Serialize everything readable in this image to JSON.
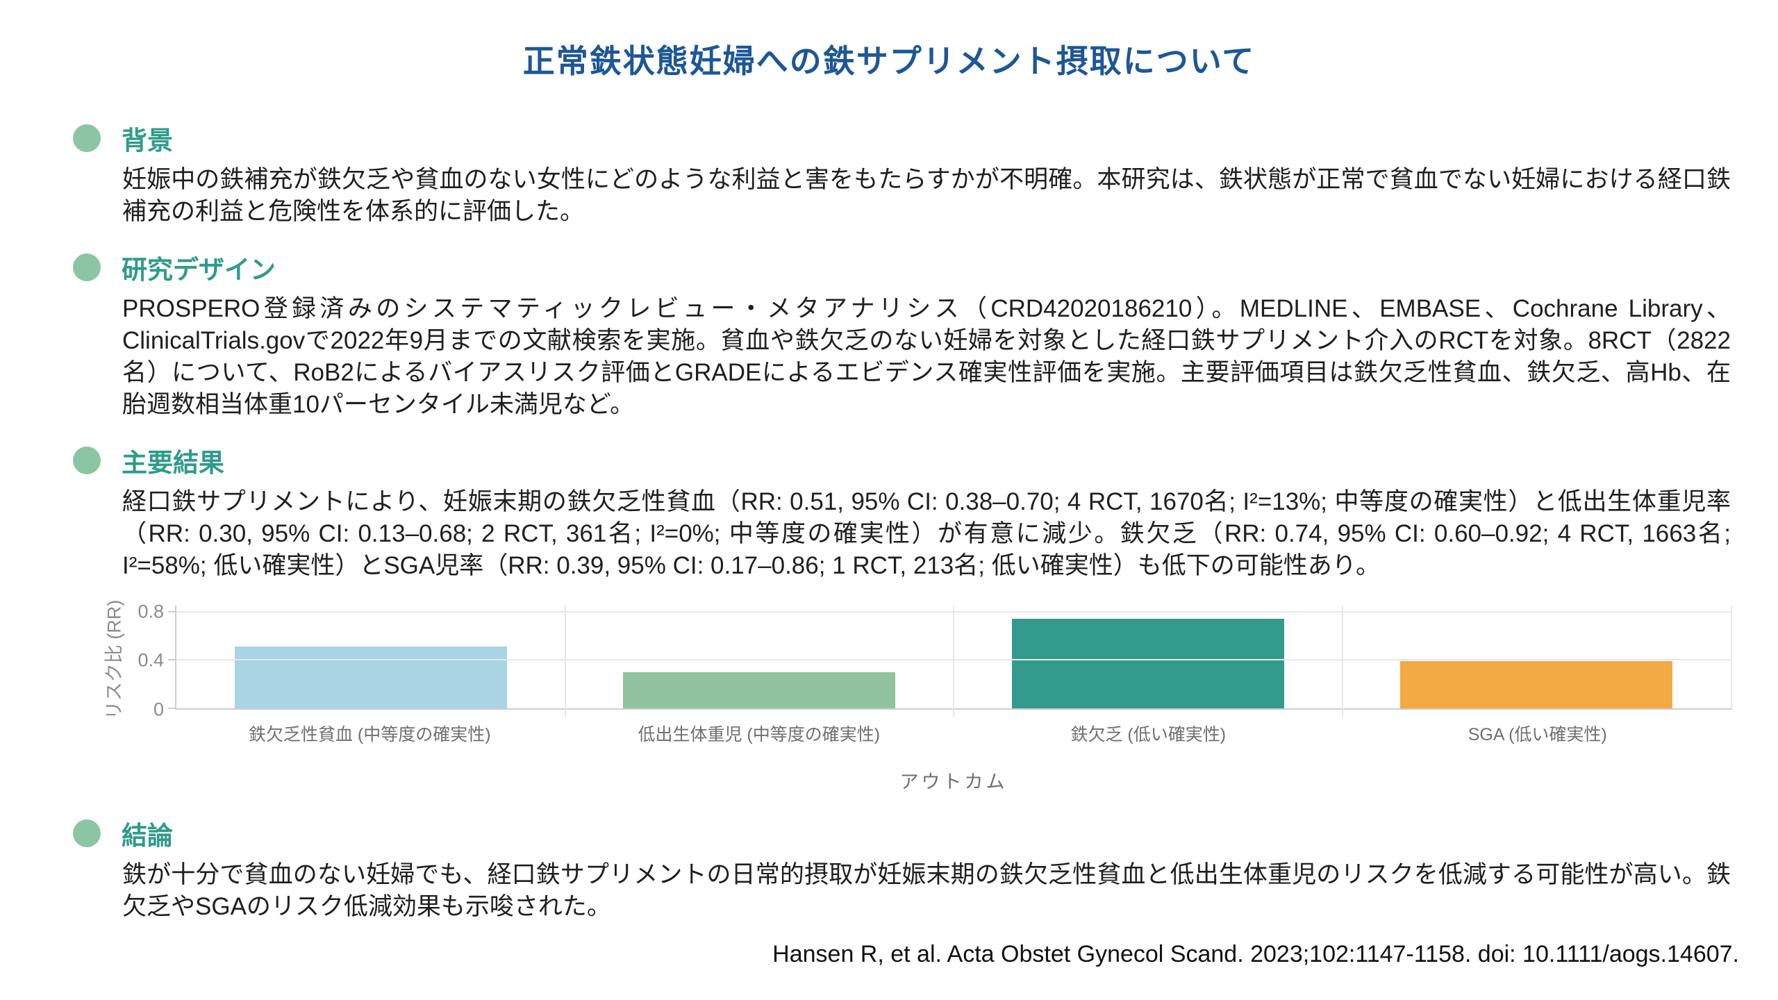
{
  "page": {
    "title": "正常鉄状態妊婦への鉄サプリメント摂取について"
  },
  "colors": {
    "title": "#1d5796",
    "heading": "#2e9b8b",
    "bullet": "#8cc5a3",
    "body_text": "#1f1f1f",
    "axis_text": "#8c8c8c"
  },
  "sections": [
    {
      "heading": "背景",
      "body": "妊娠中の鉄補充が鉄欠乏や貧血のない女性にどのような利益と害をもたらすかが不明確。本研究は、鉄状態が正常で貧血でない妊婦における経口鉄補充の利益と危険性を体系的に評価した。"
    },
    {
      "heading": "研究デザイン",
      "body": "PROSPERO登録済みのシステマティックレビュー・メタアナリシス（CRD42020186210）。MEDLINE、EMBASE、Cochrane Library、ClinicalTrials.govで2022年9月までの文献検索を実施。貧血や鉄欠乏のない妊婦を対象とした経口鉄サプリメント介入のRCTを対象。8RCT（2822名）について、RoB2によるバイアスリスク評価とGRADEによるエビデンス確実性評価を実施。主要評価項目は鉄欠乏性貧血、鉄欠乏、高Hb、在胎週数相当体重10パーセンタイル未満児など。"
    },
    {
      "heading": "主要結果",
      "body": "経口鉄サプリメントにより、妊娠末期の鉄欠乏性貧血（RR: 0.51, 95% CI: 0.38–0.70; 4 RCT, 1670名; I²=13%; 中等度の確実性）と低出生体重児率（RR: 0.30, 95% CI: 0.13–0.68; 2 RCT, 361名; I²=0%; 中等度の確実性）が有意に減少。鉄欠乏（RR: 0.74, 95% CI: 0.60–0.92; 4 RCT, 1663名; I²=58%; 低い確実性）とSGA児率（RR: 0.39, 95% CI: 0.17–0.86; 1 RCT, 213名; 低い確実性）も低下の可能性あり。"
    },
    {
      "heading": "結論",
      "body": "鉄が十分で貧血のない妊婦でも、経口鉄サプリメントの日常的摂取が妊娠末期の鉄欠乏性貧血と低出生体重児のリスクを低減する可能性が高い。鉄欠乏やSGAのリスク低減効果も示唆された。"
    }
  ],
  "chart_data": {
    "type": "bar",
    "categories": [
      "鉄欠乏性貧血 (中等度の確実性)",
      "低出生体重児 (中等度の確実性)",
      "鉄欠乏 (低い確実性)",
      "SGA (低い確実性)"
    ],
    "values": [
      0.51,
      0.3,
      0.74,
      0.39
    ],
    "bar_colors": [
      "#a8d4e4",
      "#8fc29e",
      "#339b8b",
      "#f3a944"
    ],
    "title": "",
    "xlabel": "アウトカム",
    "ylabel": "リスク比 (RR)",
    "yticks": [
      0,
      0.4,
      0.8
    ],
    "ylim": [
      0,
      0.85
    ],
    "grid": true,
    "legend": false
  },
  "citation": "Hansen R, et al. Acta Obstet Gynecol Scand. 2023;102:1147-1158. doi: 10.1111/aogs.14607."
}
